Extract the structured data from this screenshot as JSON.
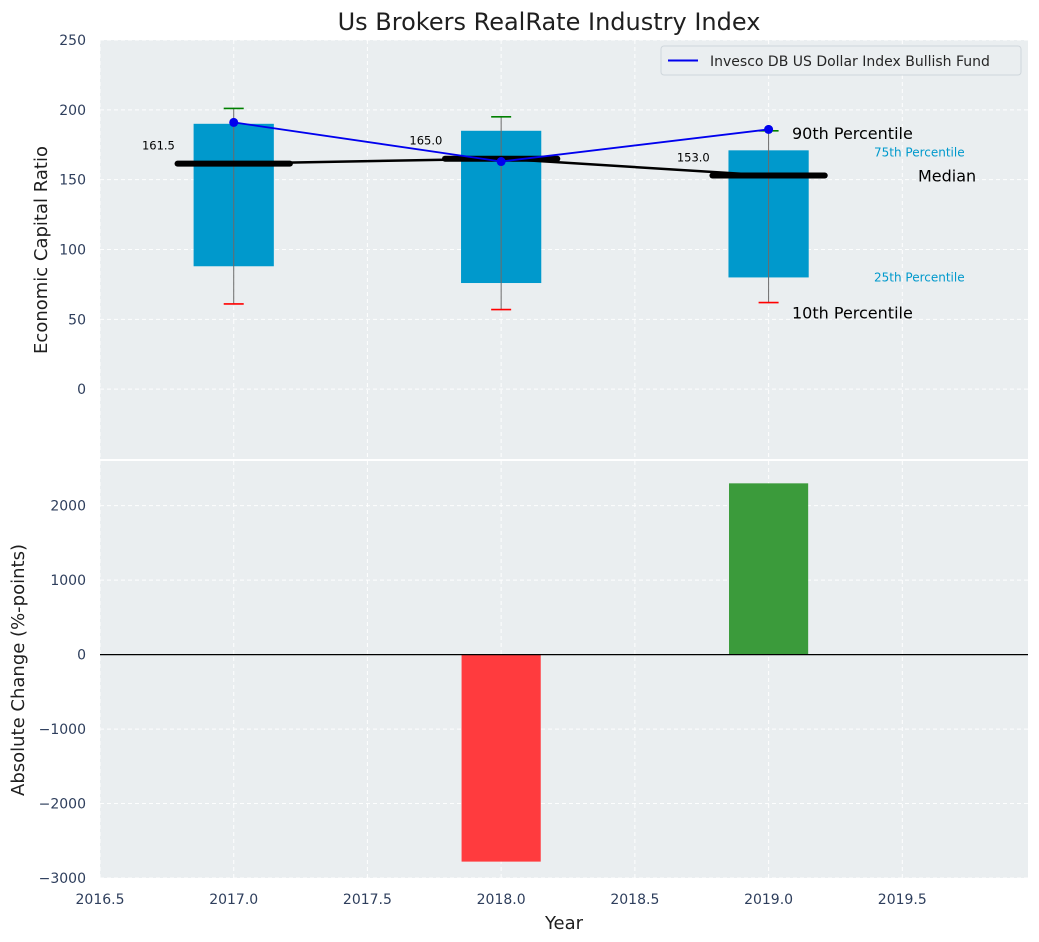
{
  "colors": {
    "background": "#eaeef0",
    "box": "#0099cc",
    "mean_line": "#0000ee",
    "median_line": "#000000",
    "whisker_top": "#008000",
    "whisker_bottom": "#ff0000",
    "bar_negative": "#ff3b3e",
    "bar_positive": "#3b9b3b",
    "annot_small": "#0099cc"
  },
  "chart_data": [
    {
      "type": "box",
      "title": "Us Brokers RealRate Industry Index",
      "xlabel": "Year",
      "ylabel": "Economic Capital Ratio",
      "xlim": [
        2016.5,
        2019.97
      ],
      "ylim": [
        -50,
        250
      ],
      "x_ticks": [
        2016.5,
        2017.0,
        2017.5,
        2018.0,
        2018.5,
        2019.0,
        2019.5
      ],
      "x_tick_labels": [
        "2016.5",
        "2017.0",
        "2017.5",
        "2018.0",
        "2018.5",
        "2019.0",
        "2019.5"
      ],
      "y_ticks": [
        0,
        50,
        100,
        150,
        200,
        250
      ],
      "y_tick_labels": [
        "0",
        "50",
        "100",
        "150",
        "200",
        "250"
      ],
      "grid": true,
      "legend": {
        "position": "top-right",
        "entries": [
          "Invesco DB US Dollar Index Bullish Fund"
        ]
      },
      "years": [
        2017,
        2018,
        2019
      ],
      "p10": [
        61,
        57,
        62
      ],
      "p25": [
        88,
        76,
        80
      ],
      "median": [
        161.5,
        165.0,
        153.0
      ],
      "median_labels": [
        "161.5",
        "165.0",
        "153.0"
      ],
      "p75": [
        190,
        185,
        171
      ],
      "p90": [
        201,
        195,
        185
      ],
      "series": [
        {
          "name": "Invesco DB US Dollar Index Bullish Fund",
          "x": [
            2017,
            2018,
            2019
          ],
          "values": [
            191,
            163,
            186
          ]
        }
      ],
      "annotations": {
        "p90": "90th Percentile",
        "p75": "75th Percentile",
        "median": "Median",
        "p25": "25th Percentile",
        "p10": "10th Percentile"
      }
    },
    {
      "type": "bar",
      "xlabel": "Year",
      "ylabel": "Absolute Change (%-points)",
      "ylim": [
        -3000,
        2600
      ],
      "y_ticks": [
        -3000,
        -2000,
        -1000,
        0,
        1000,
        2000
      ],
      "y_tick_labels": [
        "−3000",
        "−2000",
        "−1000",
        "0",
        "1000",
        "2000"
      ],
      "categories": [
        2018,
        2019
      ],
      "values": [
        -2780,
        2300
      ]
    }
  ]
}
